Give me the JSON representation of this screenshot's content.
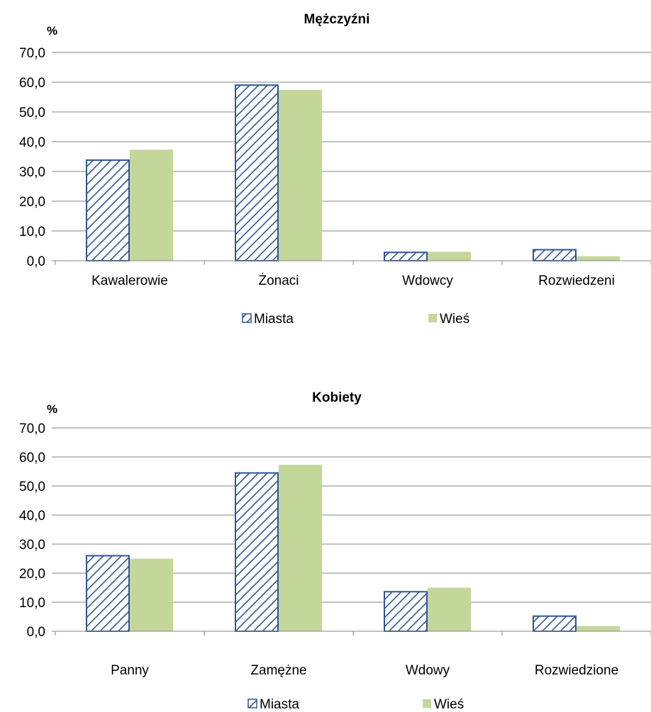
{
  "chart_data": [
    {
      "type": "bar",
      "title": "Mężczyźni",
      "ylabel": "%",
      "ylim": [
        0,
        70
      ],
      "yticks": [
        "0,0",
        "10,0",
        "20,0",
        "30,0",
        "40,0",
        "50,0",
        "60,0",
        "70,0"
      ],
      "categories": [
        "Kawalerowie",
        "Żonaci",
        "Wdowcy",
        "Rozwiedzeni"
      ],
      "series": [
        {
          "name": "Miasta",
          "values": [
            33.8,
            59.0,
            2.8,
            3.7
          ]
        },
        {
          "name": "Wieś",
          "values": [
            37.3,
            57.4,
            3.0,
            1.5
          ]
        }
      ],
      "grid": true,
      "legend": "bottom"
    },
    {
      "type": "bar",
      "title": "Kobiety",
      "ylabel": "%",
      "ylim": [
        0,
        70
      ],
      "yticks": [
        "0,0",
        "10,0",
        "20,0",
        "30,0",
        "40,0",
        "50,0",
        "60,0",
        "70,0"
      ],
      "categories": [
        "Panny",
        "Zamężne",
        "Wdowy",
        "Rozwiedzione"
      ],
      "series": [
        {
          "name": "Miasta",
          "values": [
            26.0,
            54.5,
            13.6,
            5.2
          ]
        },
        {
          "name": "Wieś",
          "values": [
            25.0,
            57.3,
            15.0,
            1.8
          ]
        }
      ],
      "grid": true,
      "legend": "bottom"
    }
  ],
  "colors": {
    "miasta_stroke": "#2F5597",
    "wies_fill": "#C4D79B",
    "grid": "#868686"
  }
}
